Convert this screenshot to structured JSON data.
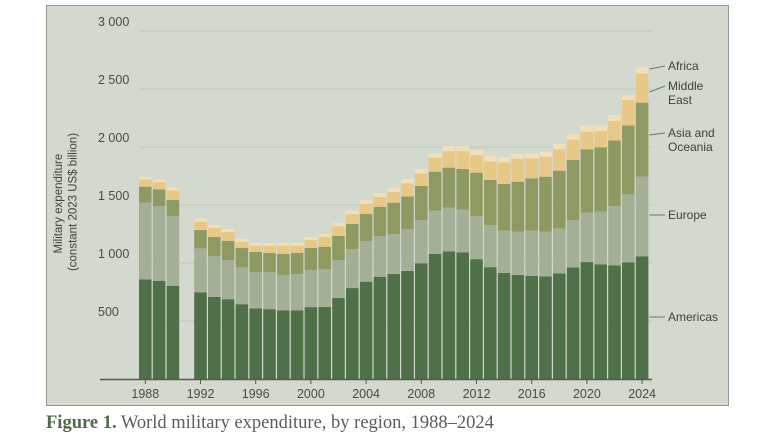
{
  "caption": {
    "label": "Figure 1.",
    "text": " World military expenditure, by region, 1988–2024"
  },
  "colors": {
    "Americas": "#50704a",
    "Europe": "#a4af97",
    "Asia and Oceania": "#8e9a62",
    "Middle East": "#e8c887",
    "Africa": "#f1dfb8",
    "panel_bg": "#d4d9cf",
    "gridline": "#c3c9be",
    "axis": "#55594f"
  },
  "chart_data": {
    "type": "bar",
    "stacked": true,
    "title": "World military expenditure, by region, 1988–2024",
    "xlabel": "",
    "ylabel": "Military expenditure\n(constant 2023 US$ billion)",
    "ylabel_lines": [
      "Military expenditure",
      "(constant 2023 US$ billion)"
    ],
    "ylim": [
      0,
      3000
    ],
    "yticks": [
      500,
      1000,
      1500,
      2000,
      2500,
      3000
    ],
    "ytick_labels": [
      "500",
      "1 000",
      "1 500",
      "2 000",
      "2 500",
      "3 000"
    ],
    "grid": true,
    "legend_position": "right (inline labels)",
    "xticks": [
      1988,
      1992,
      1996,
      2000,
      2004,
      2008,
      2012,
      2016,
      2020,
      2024
    ],
    "xtick_labels": [
      "1988",
      "1992",
      "1996",
      "2000",
      "2004",
      "2008",
      "2012",
      "2016",
      "2020",
      "2024"
    ],
    "categories": [
      1988,
      1989,
      1990,
      1991,
      1992,
      1993,
      1994,
      1995,
      1996,
      1997,
      1998,
      1999,
      2000,
      2001,
      2002,
      2003,
      2004,
      2005,
      2006,
      2007,
      2008,
      2009,
      2010,
      2011,
      2012,
      2013,
      2014,
      2015,
      2016,
      2017,
      2018,
      2019,
      2020,
      2021,
      2022,
      2023,
      2024
    ],
    "series": [
      {
        "name": "Americas",
        "legend": [
          "Americas"
        ],
        "values": [
          859,
          847,
          804,
          null,
          748,
          708,
          688,
          645,
          610,
          602,
          592,
          592,
          620,
          622,
          698,
          784,
          839,
          882,
          905,
          932,
          998,
          1078,
          1100,
          1092,
          1033,
          964,
          914,
          897,
          888,
          884,
          911,
          962,
          1008,
          989,
          980,
          1006,
          1058
        ]
      },
      {
        "name": "Europe",
        "legend": [
          "Europe"
        ],
        "values": [
          661,
          644,
          601,
          null,
          378,
          352,
          338,
          318,
          310,
          318,
          305,
          313,
          320,
          326,
          328,
          337,
          351,
          351,
          345,
          359,
          373,
          373,
          377,
          368,
          372,
          364,
          365,
          373,
          391,
          386,
          387,
          409,
          426,
          454,
          511,
          586,
          686
        ]
      },
      {
        "name": "Asia and Oceania",
        "legend": [
          "Asia and",
          "Oceania"
        ],
        "values": [
          138,
          144,
          138,
          null,
          158,
          164,
          164,
          166,
          175,
          166,
          180,
          181,
          189,
          192,
          207,
          215,
          232,
          252,
          270,
          282,
          293,
          336,
          345,
          350,
          374,
          388,
          402,
          431,
          451,
          474,
          498,
          517,
          546,
          554,
          566,
          593,
          638
        ]
      },
      {
        "name": "Middle East",
        "legend": [
          "Middle",
          "East"
        ],
        "values": [
          62,
          62,
          82,
          null,
          70,
          78,
          78,
          54,
          54,
          62,
          72,
          62,
          70,
          84,
          84,
          85,
          89,
          84,
          92,
          115,
          108,
          121,
          142,
          155,
          150,
          160,
          186,
          196,
          172,
          172,
          186,
          176,
          152,
          140,
          168,
          220,
          253
        ]
      },
      {
        "name": "Africa",
        "legend": [
          "Africa"
        ],
        "values": [
          24,
          24,
          24,
          null,
          28,
          26,
          25,
          24,
          23,
          24,
          23,
          24,
          25,
          26,
          28,
          30,
          32,
          34,
          35,
          36,
          38,
          40,
          42,
          44,
          45,
          46,
          47,
          43,
          43,
          43,
          44,
          48,
          50,
          48,
          50,
          43,
          52
        ]
      }
    ]
  }
}
